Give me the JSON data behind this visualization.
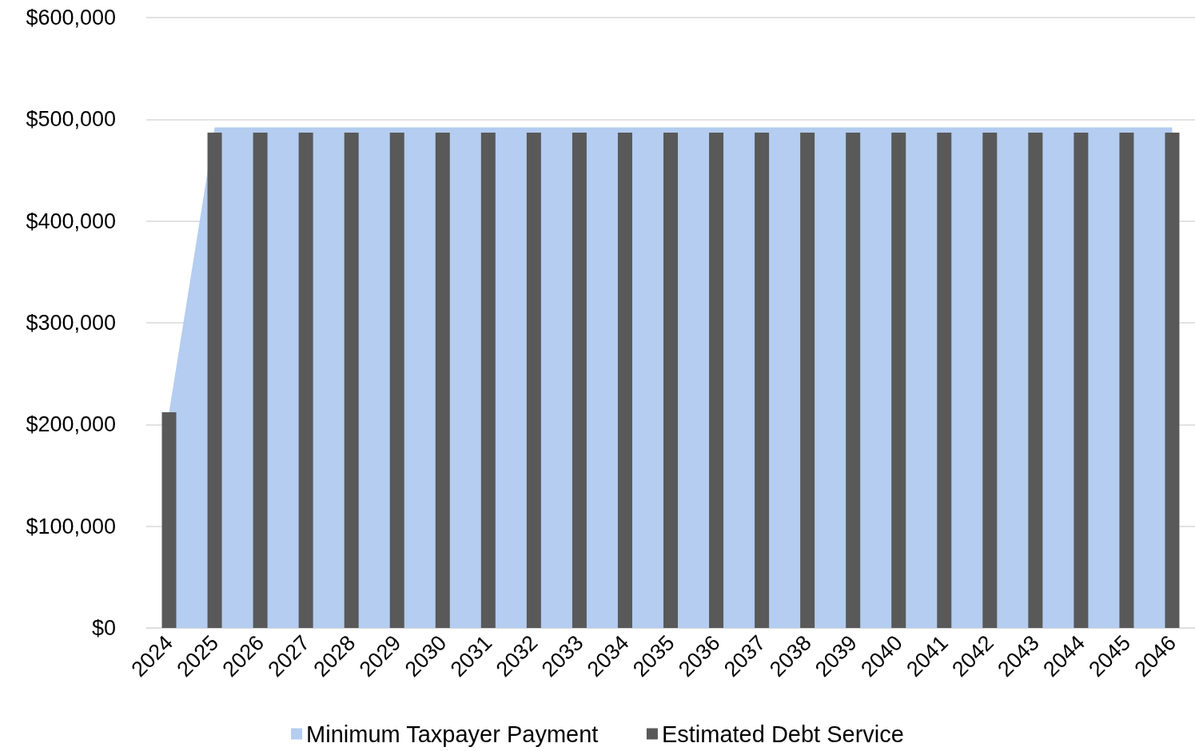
{
  "chart_data": {
    "type": "bar",
    "categories": [
      "2024",
      "2025",
      "2026",
      "2027",
      "2028",
      "2029",
      "2030",
      "2031",
      "2032",
      "2033",
      "2034",
      "2035",
      "2036",
      "2037",
      "2038",
      "2039",
      "2040",
      "2041",
      "2042",
      "2043",
      "2044",
      "2045",
      "2046"
    ],
    "series": [
      {
        "name": "Minimum Taxpayer Payment",
        "type": "area",
        "color": "#b4cdf0",
        "values": [
          212000,
          492000,
          492000,
          492000,
          492000,
          492000,
          492000,
          492000,
          492000,
          492000,
          492000,
          492000,
          492000,
          492000,
          492000,
          492000,
          492000,
          492000,
          492000,
          492000,
          492000,
          492000,
          492000
        ]
      },
      {
        "name": "Estimated Debt Service",
        "color": "#595959",
        "values": [
          212000,
          487000,
          487000,
          487000,
          487000,
          487000,
          487000,
          487000,
          487000,
          487000,
          487000,
          487000,
          487000,
          487000,
          487000,
          487000,
          487000,
          487000,
          487000,
          487000,
          487000,
          487000,
          487000
        ]
      }
    ],
    "ylim": [
      0,
      600000
    ],
    "yticks": [
      {
        "value": 0,
        "label": "$0"
      },
      {
        "value": 100000,
        "label": "$100,000"
      },
      {
        "value": 200000,
        "label": "$200,000"
      },
      {
        "value": 300000,
        "label": "$300,000"
      },
      {
        "value": 400000,
        "label": "$400,000"
      },
      {
        "value": 500000,
        "label": "$500,000"
      },
      {
        "value": 600000,
        "label": "$600,000"
      }
    ],
    "grid": "y",
    "legend": "bottom"
  }
}
